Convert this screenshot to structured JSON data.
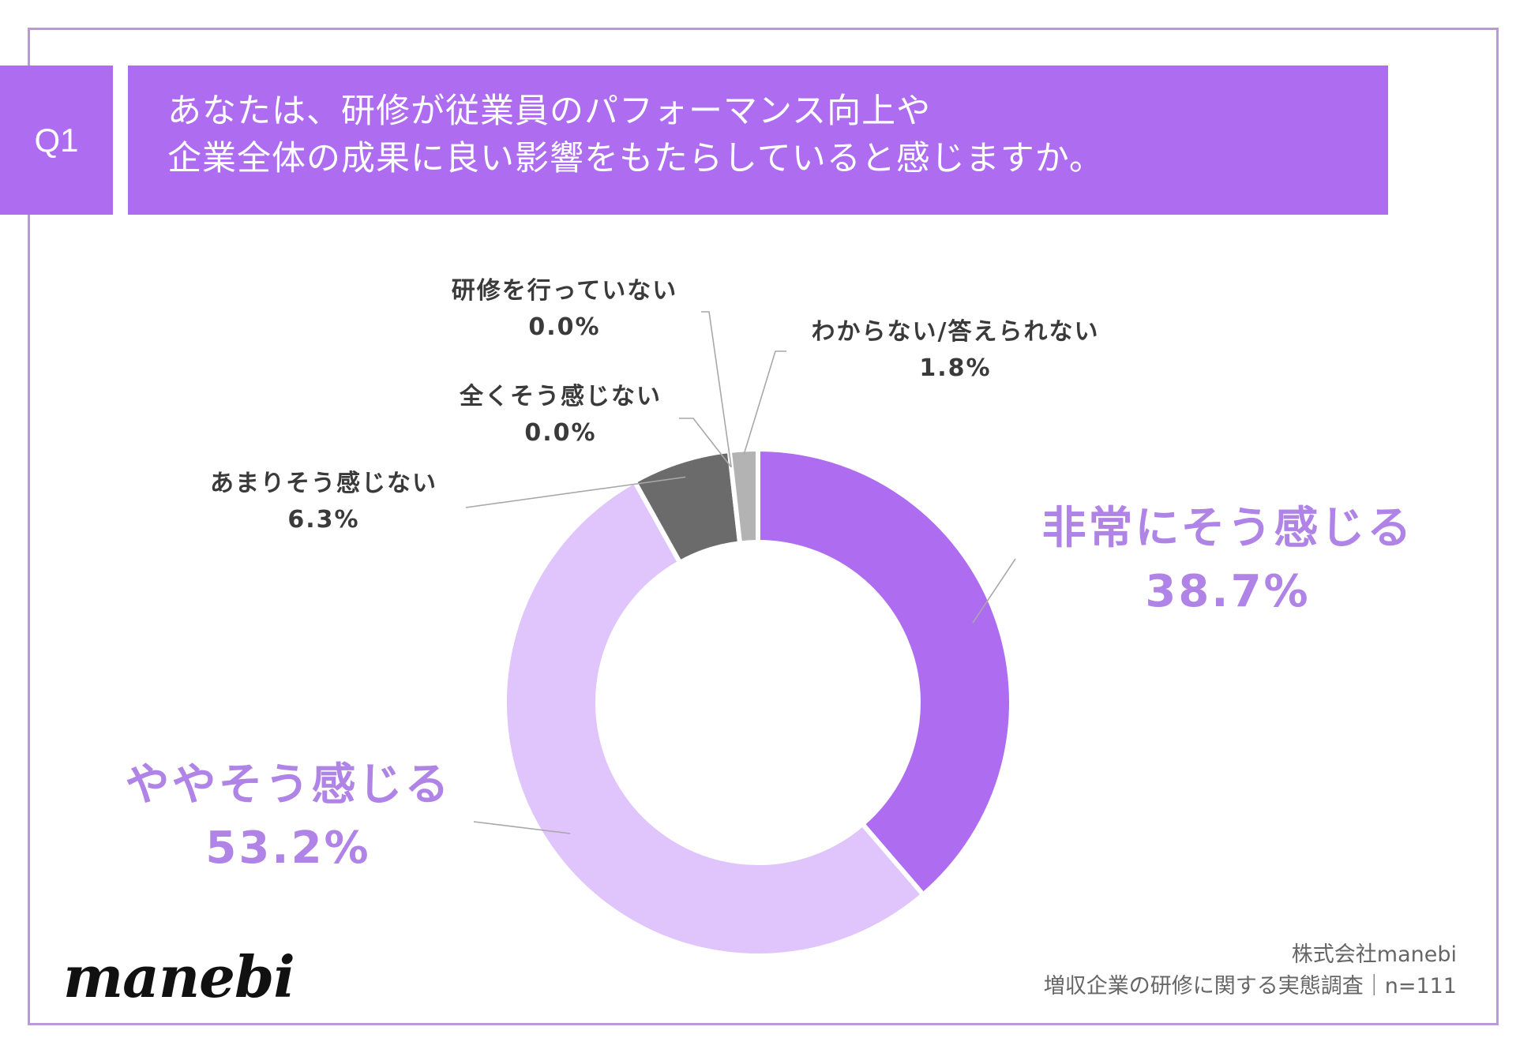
{
  "question": {
    "badge": "Q1",
    "line1": "あなたは、研修が従業員のパフォーマンス向上や",
    "line2": "企業全体の成果に良い影響をもたらしていると感じますか。"
  },
  "colors": {
    "accent": "#ae6cf0",
    "frame": "#b89ad8",
    "label_big": "#b083e6",
    "label_small": "#3a3a3a"
  },
  "chart_data": {
    "type": "pie",
    "donut": true,
    "categories": [
      "非常にそう感じる",
      "ややそう感じる",
      "あまりそう感じない",
      "全くそう感じない",
      "研修を行っていない",
      "わからない/答えられない"
    ],
    "values": [
      38.7,
      53.2,
      6.3,
      0.0,
      0.0,
      1.8
    ],
    "value_labels": [
      "38.7%",
      "53.2%",
      "6.3%",
      "0.0%",
      "0.0%",
      "1.8%"
    ],
    "colors": [
      "#ae6cf0",
      "#dfc5fb",
      "#6b6b6b",
      "#4a4a4a",
      "#8a8a8a",
      "#b3b3b3"
    ]
  },
  "footer": {
    "logo": "manebi",
    "source_line1": "株式会社manebi",
    "source_line2": "増収企業の研修に関する実態調査｜n=111"
  }
}
